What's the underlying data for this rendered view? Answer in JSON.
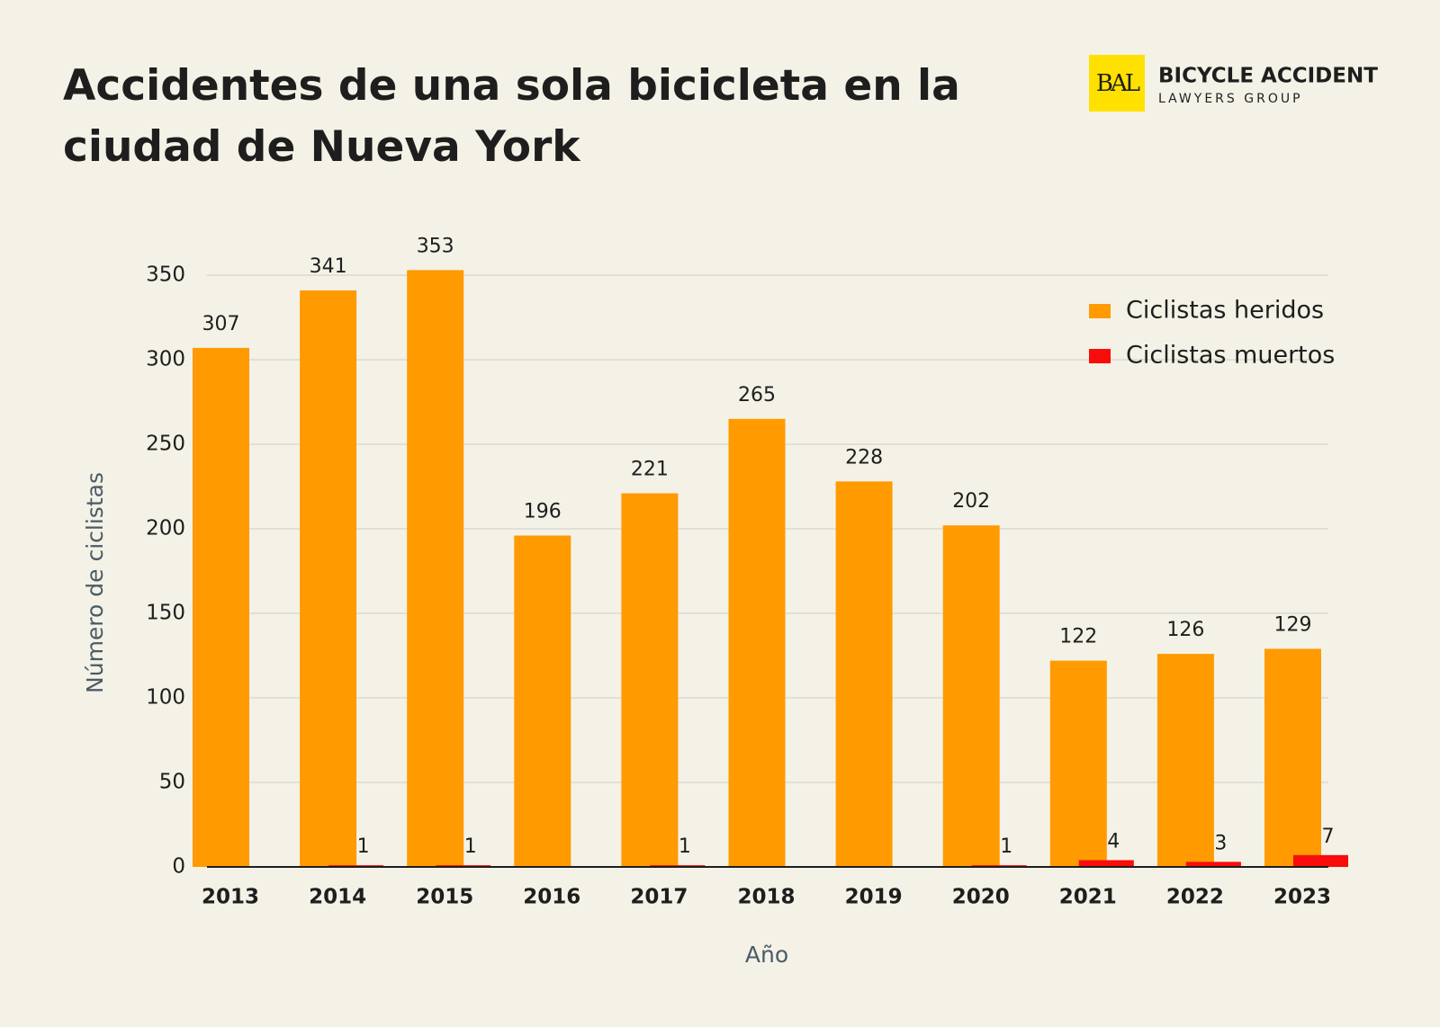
{
  "logo": {
    "mark": "BAL",
    "name": "BICYCLE ACCIDENT",
    "tagline": "LAWYERS GROUP"
  },
  "chart_data": {
    "type": "bar",
    "title": "Accidentes de una sola bicicleta en la ciudad de Nueva York",
    "x_label": "Año",
    "y_label": "Número de ciclistas",
    "categories": [
      "2013",
      "2014",
      "2015",
      "2016",
      "2017",
      "2018",
      "2019",
      "2020",
      "2021",
      "2022",
      "2023"
    ],
    "series": [
      {
        "name": "Ciclistas heridos",
        "color": "#ff9a00",
        "values": [
          307,
          341,
          353,
          196,
          221,
          265,
          228,
          202,
          122,
          126,
          129
        ]
      },
      {
        "name": "Ciclistas muertos",
        "color": "#f80c0c",
        "values": [
          null,
          1,
          1,
          null,
          1,
          null,
          null,
          1,
          4,
          3,
          7
        ]
      }
    ],
    "ylim": [
      0,
      350
    ],
    "yticks": [
      0,
      50,
      100,
      150,
      200,
      250,
      300,
      350
    ],
    "grid": true,
    "legend": "upper right"
  }
}
